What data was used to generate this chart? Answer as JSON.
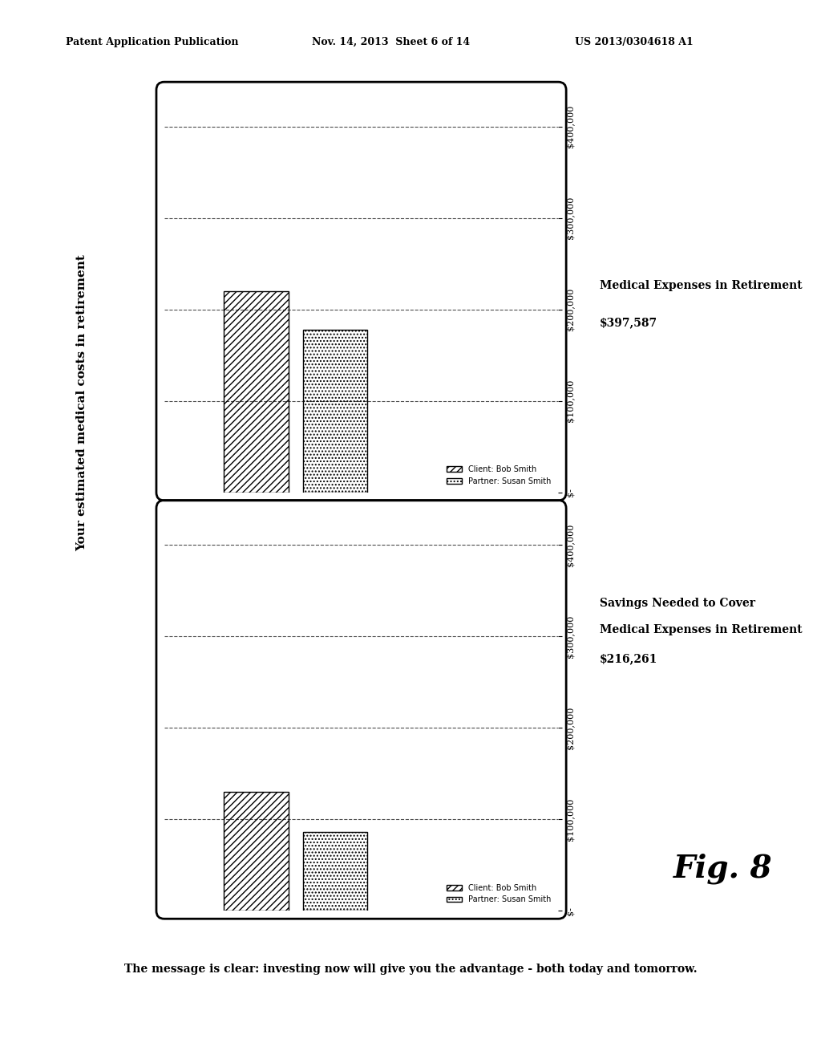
{
  "header_left": "Patent Application Publication",
  "header_mid": "Nov. 14, 2013  Sheet 6 of 14",
  "header_right": "US 2013/0304618 A1",
  "page_title": "Your estimated medical costs in retirement",
  "fig_label": "Fig. 8",
  "chart1": {
    "title": "Savings Needed to Cover\nMedical Expenses in Retirement\n$216,261",
    "bar1_value": 130000,
    "bar2_value": 86261,
    "yticks": [
      0,
      100000,
      200000,
      300000,
      400000
    ],
    "ytick_labels": [
      "$-",
      "$100,000",
      "$200,000",
      "$300,000",
      "$400,000"
    ],
    "ymax": 440000
  },
  "chart2": {
    "title": "Medical Expenses in Retirement\n$397,587",
    "bar1_value": 220000,
    "bar2_value": 177587,
    "yticks": [
      0,
      100000,
      200000,
      300000,
      400000
    ],
    "ytick_labels": [
      "$-",
      "$100,000",
      "$200,000",
      "$300,000",
      "$400,000"
    ],
    "ymax": 440000
  },
  "legend_client": "Client: Bob Smith",
  "legend_partner": "Partner: Susan Smith",
  "bottom_text": "The message is clear: investing now will give you the advantage - both today and tomorrow.",
  "bg_color": "#ffffff",
  "bar_hatch1": "////",
  "bar_hatch2": "....",
  "bar_color": "#888888",
  "bar_color2": "#aaaaaa"
}
